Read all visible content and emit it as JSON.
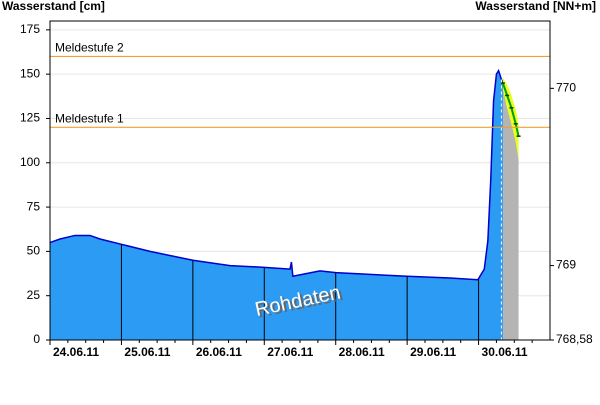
{
  "chart_data": {
    "type": "area",
    "y_axis_label": "Wasserstand [cm]",
    "y2_axis_label": "Wasserstand [NN+m]",
    "annotation": "Rohdaten",
    "xlim": [
      0,
      7
    ],
    "xticks": [
      {
        "value": 0,
        "label": "24.06.11"
      },
      {
        "value": 1,
        "label": "25.06.11"
      },
      {
        "value": 2,
        "label": "26.06.11"
      },
      {
        "value": 3,
        "label": "27.06.11"
      },
      {
        "value": 4,
        "label": "28.06.11"
      },
      {
        "value": 5,
        "label": "29.06.11"
      },
      {
        "value": 6,
        "label": "30.06.11"
      }
    ],
    "ylim": [
      0,
      180
    ],
    "yticks": [
      0,
      25,
      50,
      75,
      100,
      125,
      150,
      175
    ],
    "y2lim": [
      768.58,
      770.38
    ],
    "y2ticks": [
      {
        "value": 768.58,
        "label": "768,58"
      },
      769,
      770
    ],
    "grid": true,
    "thresholds": [
      {
        "label": "Meldestufe 2",
        "value": 160,
        "color": "#f0a030"
      },
      {
        "label": "Meldestufe 1",
        "value": 120,
        "color": "#f0a030"
      }
    ],
    "series": [
      {
        "color": "#2b9bf4",
        "line_color": "#0000cc",
        "x": [
          0,
          0.14,
          0.35,
          0.56,
          0.7,
          1.0,
          1.4,
          2.0,
          2.52,
          3.0,
          3.36,
          3.38,
          3.4,
          3.78,
          4.0,
          4.48,
          5.0,
          5.6,
          5.99,
          6.08,
          6.13,
          6.17,
          6.21,
          6.25,
          6.28,
          6.32,
          6.38
        ],
        "values": [
          55,
          57,
          59,
          59,
          57,
          54,
          50,
          45,
          42,
          41,
          40,
          44,
          36,
          39,
          38,
          37,
          36,
          35,
          34,
          40,
          56,
          90,
          135,
          150,
          152,
          147,
          142
        ]
      },
      {
        "color": "#00a000",
        "band_color": "#e8ff20",
        "fill_below": "#b4b4b4",
        "x": [
          6.34,
          6.4,
          6.46,
          6.52,
          6.56
        ],
        "values": [
          145,
          138,
          131,
          122,
          115
        ],
        "lower": [
          141,
          131,
          122,
          112,
          102
        ],
        "upper": [
          148,
          144,
          138,
          130,
          122
        ]
      }
    ]
  }
}
